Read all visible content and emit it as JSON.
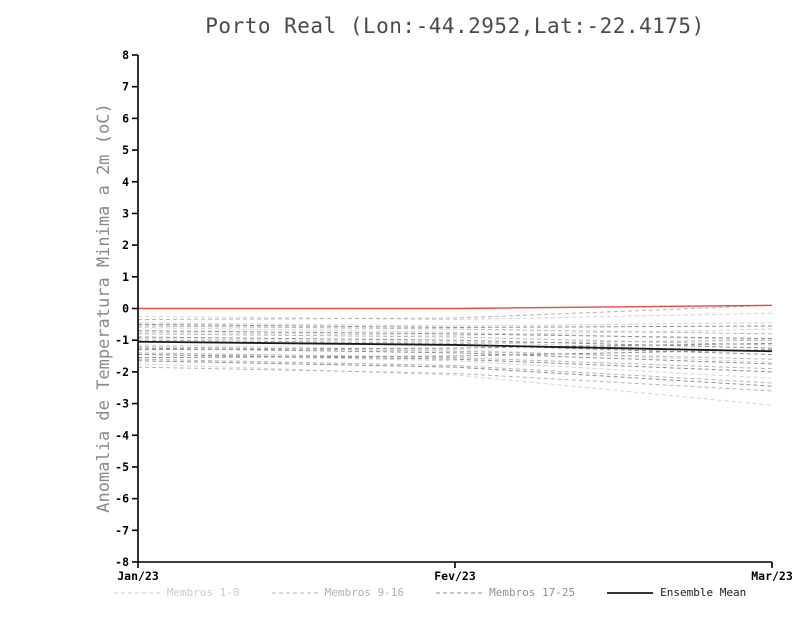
{
  "chart_data": {
    "type": "line",
    "title": "Porto Real (Lon:-44.2952,Lat:-22.4175)",
    "ylabel": "Anomalia de Temperatura Minima a 2m (oC)",
    "xlabel": "",
    "ylim": [
      -8,
      8
    ],
    "y_ticks": [
      8,
      7,
      6,
      5,
      4,
      3,
      2,
      1,
      0,
      -1,
      -2,
      -3,
      -4,
      -5,
      -6,
      -7,
      -8
    ],
    "x": [
      0,
      0.5,
      1
    ],
    "x_tick_labels": [
      "Jan/23",
      "Fev/23",
      "Mar/23"
    ],
    "grid": false,
    "legend_position": "bottom",
    "groups": [
      {
        "name": "Membros 1-8",
        "color": "#d4d4d4",
        "style": "dashed",
        "members": [
          [
            -0.25,
            -0.35,
            -0.15
          ],
          [
            -0.45,
            -0.55,
            -0.45
          ],
          [
            -0.6,
            -0.75,
            -1.0
          ],
          [
            -0.75,
            -0.85,
            -0.65
          ],
          [
            -0.95,
            -1.05,
            -1.35
          ],
          [
            -1.15,
            -1.3,
            -1.7
          ],
          [
            -1.45,
            -1.65,
            -2.2
          ],
          [
            -1.75,
            -2.1,
            -3.05
          ]
        ]
      },
      {
        "name": "Membros 9-16",
        "color": "#b4b4b4",
        "style": "dashed",
        "members": [
          [
            -0.35,
            -0.3,
            0.1
          ],
          [
            -0.55,
            -0.65,
            -0.8
          ],
          [
            -0.8,
            -0.9,
            -1.15
          ],
          [
            -1.0,
            -1.1,
            -1.0
          ],
          [
            -1.2,
            -1.35,
            -1.6
          ],
          [
            -1.4,
            -1.55,
            -1.9
          ],
          [
            -1.6,
            -1.8,
            -2.35
          ],
          [
            -1.85,
            -2.05,
            -2.6
          ]
        ]
      },
      {
        "name": "Membros 17-25",
        "color": "#8e8e8e",
        "style": "dashed",
        "members": [
          [
            -0.5,
            -0.6,
            -0.55
          ],
          [
            -0.7,
            -0.8,
            -0.95
          ],
          [
            -0.9,
            -1.0,
            -1.25
          ],
          [
            -1.05,
            -1.15,
            -1.45
          ],
          [
            -1.25,
            -1.4,
            -1.75
          ],
          [
            -1.45,
            -1.6,
            -2.0
          ],
          [
            -1.65,
            -1.85,
            -2.45
          ],
          [
            -1.3,
            -1.25,
            -1.1
          ],
          [
            -1.55,
            -1.5,
            -1.3
          ]
        ]
      }
    ],
    "mean": {
      "name": "Ensemble Mean",
      "color": "#1a1a1a",
      "style": "solid",
      "values": [
        -1.05,
        -1.15,
        -1.35
      ]
    },
    "reference_line": {
      "name": "zero-anomaly-line",
      "color": "#e8493f",
      "style": "solid",
      "values": [
        0,
        0,
        0.1
      ]
    }
  },
  "legend": [
    {
      "label": "Membros 1-8",
      "color": "#cccccc",
      "dashed": true
    },
    {
      "label": "Membros 9-16",
      "color": "#b0b0b0",
      "dashed": true
    },
    {
      "label": "Membros 17-25",
      "color": "#8e8e8e",
      "dashed": true
    },
    {
      "label": "Ensemble Mean",
      "color": "#1a1a1a",
      "dashed": false
    }
  ]
}
